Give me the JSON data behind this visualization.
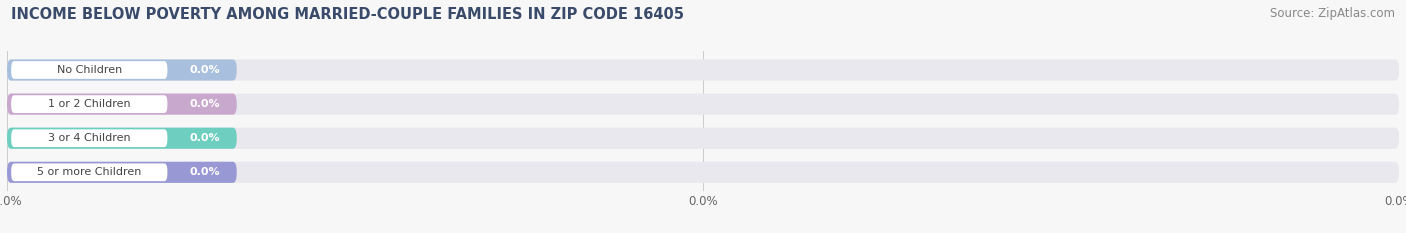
{
  "title": "INCOME BELOW POVERTY AMONG MARRIED-COUPLE FAMILIES IN ZIP CODE 16405",
  "source": "Source: ZipAtlas.com",
  "categories": [
    "No Children",
    "1 or 2 Children",
    "3 or 4 Children",
    "5 or more Children"
  ],
  "values": [
    0.0,
    0.0,
    0.0,
    0.0
  ],
  "bar_colors": [
    "#a8c0de",
    "#c8a8cc",
    "#6ecec0",
    "#9898d4"
  ],
  "background_color": "#f7f7f7",
  "bar_background": "#e8e8ee",
  "title_color": "#3a4a6a",
  "source_color": "#888888",
  "title_fontsize": 10.5,
  "source_fontsize": 8.5,
  "tick_fontsize": 8.5,
  "cat_fontsize": 8,
  "val_fontsize": 8
}
